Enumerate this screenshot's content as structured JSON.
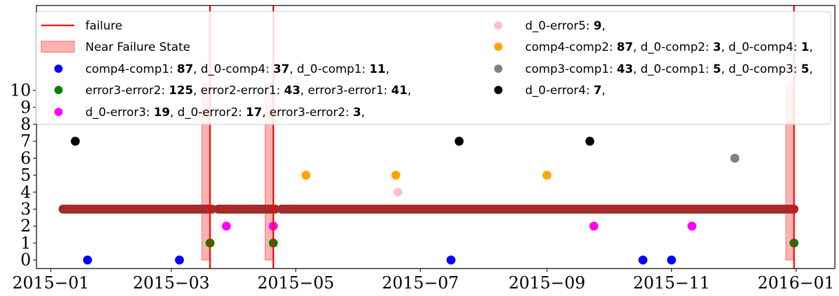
{
  "chart_data": {
    "type": "scatter",
    "x_axis": {
      "type": "date",
      "min": "2014-12-25",
      "max": "2016-01-20",
      "ticks": [
        {
          "date": "2015-01-01",
          "label": "2015−01"
        },
        {
          "date": "2015-03-01",
          "label": "2015−03"
        },
        {
          "date": "2015-05-01",
          "label": "2015−05"
        },
        {
          "date": "2015-07-01",
          "label": "2015−07"
        },
        {
          "date": "2015-09-01",
          "label": "2015−09"
        },
        {
          "date": "2015-11-01",
          "label": "2015−11"
        },
        {
          "date": "2016-01-01",
          "label": "2016−01"
        }
      ]
    },
    "y_axis": {
      "min": -0.5,
      "max": 15,
      "ticks": [
        0,
        1,
        2,
        3,
        4,
        5,
        6,
        7,
        8,
        9,
        10
      ]
    },
    "failures": [
      "2015-03-20",
      "2015-04-20",
      "2015-12-31"
    ],
    "near_failure_states": [
      {
        "start": "2015-03-16",
        "end": "2015-03-20"
      },
      {
        "start": "2015-04-16",
        "end": "2015-04-20"
      },
      {
        "start": "2015-12-27",
        "end": "2015-12-31"
      }
    ],
    "continuous_bands": [
      {
        "color": "#a52a2a",
        "y": 3,
        "segments": [
          {
            "start": "2015-01-07",
            "end": "2015-03-21"
          },
          {
            "start": "2015-03-24",
            "end": "2015-04-21"
          },
          {
            "start": "2015-04-24",
            "end": "2015-12-31"
          }
        ]
      }
    ],
    "series": [
      {
        "color": "#0000ff",
        "y": 0,
        "dates": [
          "2015-01-19",
          "2015-03-05",
          "2015-07-16",
          "2015-10-18",
          "2015-11-01"
        ]
      },
      {
        "color": "#008000",
        "y": 1,
        "dates": [
          "2015-03-20",
          "2015-04-20",
          "2015-12-31"
        ]
      },
      {
        "color": "#ff00ff",
        "y": 2,
        "dates": [
          "2015-03-28",
          "2015-04-20",
          "2015-09-24",
          "2015-11-11"
        ]
      },
      {
        "color": "#ffc0cb",
        "y": 4,
        "dates": [
          "2015-06-20"
        ]
      },
      {
        "color": "#ffa500",
        "y": 5,
        "dates": [
          "2015-05-06",
          "2015-06-19",
          "2015-09-01"
        ]
      },
      {
        "color": "#808080",
        "y": 6,
        "dates": [
          "2015-12-02"
        ]
      },
      {
        "color": "#000000",
        "y": 7,
        "dates": [
          "2015-01-13",
          "2015-07-20",
          "2015-09-22"
        ]
      }
    ],
    "legend": {
      "placement": "top",
      "entries": [
        {
          "kind": "line",
          "color": "#ff0000",
          "parts": [
            {
              "text": "failure"
            }
          ]
        },
        {
          "kind": "patch",
          "color": "#ff0000",
          "parts": [
            {
              "text": "Near Failure State"
            }
          ]
        },
        {
          "kind": "marker",
          "color": "#0000ff",
          "parts": [
            {
              "text": "comp4-comp1: "
            },
            {
              "text": "87",
              "bold": true
            },
            {
              "text": ", d_0-comp4: "
            },
            {
              "text": "37",
              "bold": true
            },
            {
              "text": ", d_0-comp1: "
            },
            {
              "text": "11",
              "bold": true
            },
            {
              "text": ","
            }
          ]
        },
        {
          "kind": "marker",
          "color": "#008000",
          "parts": [
            {
              "text": "error3-error2: "
            },
            {
              "text": "125",
              "bold": true
            },
            {
              "text": ", error2-error1: "
            },
            {
              "text": "43",
              "bold": true
            },
            {
              "text": ", error3-error1: "
            },
            {
              "text": "41",
              "bold": true
            },
            {
              "text": ","
            }
          ]
        },
        {
          "kind": "marker",
          "color": "#ff00ff",
          "parts": [
            {
              "text": "d_0-error3: "
            },
            {
              "text": "19",
              "bold": true
            },
            {
              "text": ", d_0-error2: "
            },
            {
              "text": "17",
              "bold": true
            },
            {
              "text": ", error3-error2: "
            },
            {
              "text": "3",
              "bold": true
            },
            {
              "text": ","
            }
          ]
        },
        {
          "kind": "marker",
          "color": "#ffc0cb",
          "parts": [
            {
              "text": "d_0-error5: "
            },
            {
              "text": "9",
              "bold": true
            },
            {
              "text": ","
            }
          ]
        },
        {
          "kind": "marker",
          "color": "#ffa500",
          "parts": [
            {
              "text": "comp4-comp2: "
            },
            {
              "text": "87",
              "bold": true
            },
            {
              "text": ", d_0-comp2: "
            },
            {
              "text": "3",
              "bold": true
            },
            {
              "text": ", d_0-comp4: "
            },
            {
              "text": "1",
              "bold": true
            },
            {
              "text": ","
            }
          ]
        },
        {
          "kind": "marker",
          "color": "#808080",
          "parts": [
            {
              "text": "comp3-comp1: "
            },
            {
              "text": "43",
              "bold": true
            },
            {
              "text": ", d_0-comp1: "
            },
            {
              "text": "5",
              "bold": true
            },
            {
              "text": ", d_0-comp3: "
            },
            {
              "text": "5",
              "bold": true
            },
            {
              "text": ","
            }
          ]
        },
        {
          "kind": "marker",
          "color": "#000000",
          "parts": [
            {
              "text": "d_0-error4: "
            },
            {
              "text": "7",
              "bold": true
            },
            {
              "text": ","
            }
          ]
        }
      ]
    }
  }
}
